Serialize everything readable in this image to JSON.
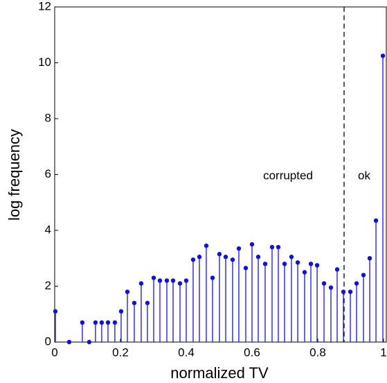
{
  "chart_data": {
    "type": "stem",
    "xlabel": "normalized TV",
    "ylabel": "log frequency",
    "color": "#1010e0",
    "x": [
      0.002,
      0.044,
      0.084,
      0.105,
      0.124,
      0.143,
      0.162,
      0.183,
      0.202,
      0.221,
      0.242,
      0.263,
      0.282,
      0.301,
      0.32,
      0.341,
      0.36,
      0.381,
      0.4,
      0.421,
      0.44,
      0.461,
      0.48,
      0.501,
      0.52,
      0.541,
      0.56,
      0.581,
      0.6,
      0.619,
      0.64,
      0.661,
      0.68,
      0.699,
      0.72,
      0.739,
      0.76,
      0.779,
      0.798,
      0.819,
      0.84,
      0.859,
      0.878,
      0.899,
      0.918,
      0.939,
      0.958,
      0.977,
      0.998
    ],
    "values": [
      1.1,
      0,
      0.7,
      0,
      0.7,
      0.7,
      0.7,
      0.7,
      1.1,
      1.8,
      1.4,
      2.1,
      1.4,
      2.3,
      2.2,
      2.2,
      2.2,
      2.1,
      2.2,
      2.95,
      3.05,
      3.45,
      2.3,
      3.15,
      3.05,
      2.95,
      3.35,
      2.65,
      3.5,
      3.05,
      2.8,
      3.4,
      3.4,
      2.8,
      3.05,
      2.85,
      2.5,
      2.8,
      2.75,
      2.1,
      1.95,
      2.6,
      1.8,
      1.8,
      2.1,
      2.4,
      3.0,
      4.35,
      10.25
    ],
    "xlim": [
      0,
      1
    ],
    "ylim": [
      0,
      12
    ],
    "xticks": [
      0,
      0.2,
      0.4,
      0.6,
      0.8,
      1
    ],
    "yticks": [
      0,
      2,
      4,
      6,
      8,
      10,
      12
    ],
    "threshold_x": 0.88,
    "annotations": [
      "corrupted",
      "ok"
    ]
  }
}
